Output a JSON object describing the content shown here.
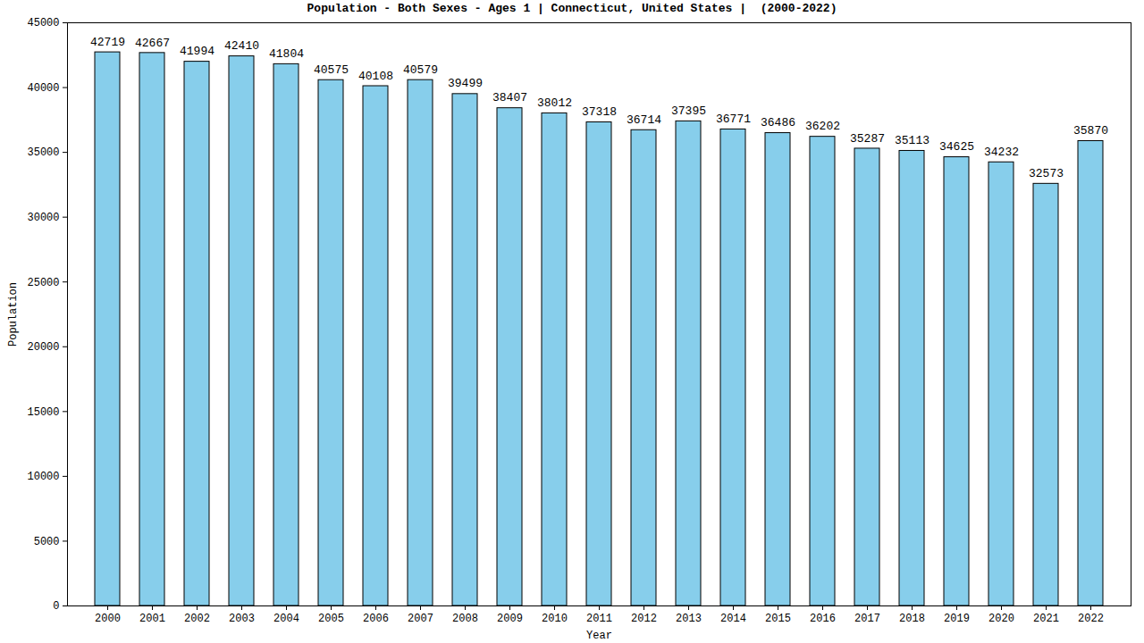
{
  "chart_data": {
    "type": "bar",
    "title": "Population - Both Sexes - Ages 1 | Connecticut, United States |  (2000-2022)",
    "x_label": "Year",
    "y_label": "Population",
    "categories": [
      "2000",
      "2001",
      "2002",
      "2003",
      "2004",
      "2005",
      "2006",
      "2007",
      "2008",
      "2009",
      "2010",
      "2011",
      "2012",
      "2013",
      "2014",
      "2015",
      "2016",
      "2017",
      "2018",
      "2019",
      "2020",
      "2021",
      "2022"
    ],
    "values": [
      42719,
      42667,
      41994,
      42410,
      41804,
      40575,
      40108,
      40579,
      39499,
      38407,
      38012,
      37318,
      36714,
      37395,
      36771,
      36486,
      36202,
      35287,
      35113,
      34625,
      34232,
      32573,
      35870
    ],
    "color": "#87ceeb",
    "ylim": [
      0,
      45000
    ],
    "yticks": [
      0,
      5000,
      10000,
      15000,
      20000,
      25000,
      30000,
      35000,
      40000,
      45000
    ],
    "data_labels": true,
    "grid": false
  }
}
